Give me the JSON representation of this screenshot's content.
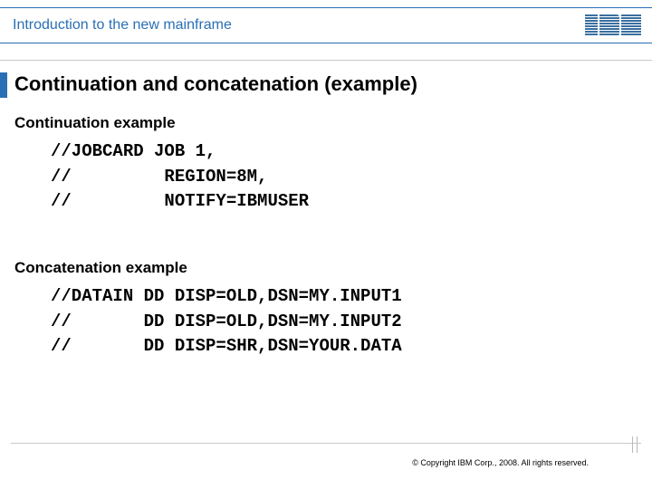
{
  "header": {
    "text": "Introduction to the new mainframe",
    "logo_alt": "IBM",
    "accent_color": "#2a6fb5",
    "rule_color": "#c9c9c9"
  },
  "title": "Continuation and concatenation (example)",
  "sections": {
    "continuation": {
      "heading": "Continuation example",
      "code": "//JOBCARD JOB 1,\n//         REGION=8M,\n//         NOTIFY=IBMUSER"
    },
    "concatenation": {
      "heading": "Concatenation example",
      "code": "//DATAIN DD DISP=OLD,DSN=MY.INPUT1\n//       DD DISP=OLD,DSN=MY.INPUT2\n//       DD DISP=SHR,DSN=YOUR.DATA"
    }
  },
  "footer": {
    "copyright": "© Copyright IBM Corp., 2008. All rights reserved."
  },
  "colors": {
    "background": "#ffffff",
    "text": "#000000",
    "accent": "#2a6fb5",
    "rule": "#c9c9c9"
  }
}
